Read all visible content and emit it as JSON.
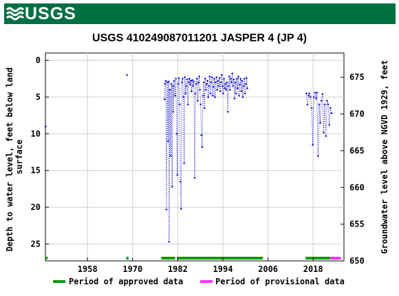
{
  "header": {
    "agency_logo_text": "USGS"
  },
  "chart_data": {
    "type": "scatter",
    "title": "USGS 410249087011201 JASPER 4 (JP 4)",
    "ylabel_left": "Depth to water level, feet below land surface",
    "ylabel_left_lines": [
      "Depth to water level, feet below land",
      "surface"
    ],
    "ylabel_right": "Groundwater level above NGVD 1929, feet",
    "xlim": [
      1946.8,
      2026.2
    ],
    "ylim": [
      -1.0,
      27.3
    ],
    "x_ticks": [
      1958,
      1970,
      1982,
      1994,
      2006,
      2018
    ],
    "x_tick_labels": [
      "1958",
      "1970",
      "1982",
      "1994",
      "2006",
      "2018"
    ],
    "y_ticks": [
      0,
      5,
      10,
      15,
      20,
      25
    ],
    "y_tick_labels": [
      "0",
      "5",
      "10",
      "15",
      "20",
      "25"
    ],
    "y2_ticks": [
      675,
      670,
      665,
      660,
      655,
      650
    ],
    "y2_tick_labels": [
      "675",
      "670",
      "665",
      "660",
      "655",
      "650"
    ],
    "land_surface_offset": 677.3,
    "grid": true,
    "legend_position": "bottom",
    "legend": [
      {
        "label": "Period of approved data",
        "color": "#009900"
      },
      {
        "label": "Period of provisional data",
        "color": "#ff33ff"
      }
    ],
    "point_color": "#0000cc",
    "series": [
      {
        "name": "",
        "style": "dotted-points",
        "points": [
          [
            1946.9,
            9.0
          ],
          [
            1968.5,
            2.0
          ],
          [
            1978.5,
            5.3
          ],
          [
            1978.6,
            3.2
          ],
          [
            1978.8,
            2.8
          ],
          [
            1979.0,
            20.3
          ],
          [
            1979.2,
            3.0
          ],
          [
            1979.4,
            11.0
          ],
          [
            1979.6,
            2.9
          ],
          [
            1979.7,
            24.7
          ],
          [
            1979.9,
            4.0
          ],
          [
            1980.1,
            13.0
          ],
          [
            1980.3,
            3.2
          ],
          [
            1980.5,
            17.2
          ],
          [
            1980.7,
            3.5
          ],
          [
            1980.8,
            7.0
          ],
          [
            1981.0,
            2.8
          ],
          [
            1981.3,
            4.8
          ],
          [
            1981.5,
            2.5
          ],
          [
            1981.7,
            10.0
          ],
          [
            1981.9,
            15.6
          ],
          [
            1982.1,
            3.2
          ],
          [
            1982.3,
            2.4
          ],
          [
            1982.5,
            6.0
          ],
          [
            1982.7,
            16.5
          ],
          [
            1982.9,
            20.2
          ],
          [
            1983.1,
            3.0
          ],
          [
            1983.3,
            2.5
          ],
          [
            1983.5,
            5.0
          ],
          [
            1983.7,
            14.0
          ],
          [
            1983.9,
            2.3
          ],
          [
            1984.1,
            4.5
          ],
          [
            1984.3,
            3.5
          ],
          [
            1984.5,
            2.6
          ],
          [
            1984.7,
            6.0
          ],
          [
            1984.9,
            3.0
          ],
          [
            1985.1,
            2.5
          ],
          [
            1985.3,
            3.3
          ],
          [
            1985.5,
            2.8
          ],
          [
            1985.7,
            4.2
          ],
          [
            1985.9,
            2.7
          ],
          [
            1986.1,
            3.5
          ],
          [
            1986.3,
            2.9
          ],
          [
            1986.5,
            16.0
          ],
          [
            1986.7,
            4.5
          ],
          [
            1986.9,
            3.2
          ],
          [
            1987.1,
            2.5
          ],
          [
            1987.3,
            5.5
          ],
          [
            1987.5,
            3.0
          ],
          [
            1987.7,
            2.2
          ],
          [
            1987.9,
            4.0
          ],
          [
            1988.1,
            6.0
          ],
          [
            1988.3,
            10.2
          ],
          [
            1988.5,
            11.8
          ],
          [
            1988.7,
            4.8
          ],
          [
            1988.9,
            3.0
          ],
          [
            1989.1,
            6.5
          ],
          [
            1989.3,
            2.5
          ],
          [
            1989.5,
            4.0
          ],
          [
            1989.7,
            3.2
          ],
          [
            1989.9,
            2.8
          ],
          [
            1990.1,
            5.0
          ],
          [
            1990.3,
            3.5
          ],
          [
            1990.5,
            2.2
          ],
          [
            1990.7,
            4.5
          ],
          [
            1990.9,
            3.0
          ],
          [
            1991.1,
            2.3
          ],
          [
            1991.3,
            4.8
          ],
          [
            1991.5,
            3.6
          ],
          [
            1991.7,
            2.5
          ],
          [
            1991.9,
            5.0
          ],
          [
            1992.1,
            3.0
          ],
          [
            1992.3,
            2.3
          ],
          [
            1992.5,
            4.0
          ],
          [
            1992.7,
            2.8
          ],
          [
            1992.9,
            3.5
          ],
          [
            1993.1,
            2.4
          ],
          [
            1993.3,
            4.2
          ],
          [
            1993.5,
            3.0
          ],
          [
            1993.7,
            2.0
          ],
          [
            1993.9,
            3.5
          ],
          [
            1994.1,
            4.5
          ],
          [
            1994.3,
            2.5
          ],
          [
            1994.5,
            3.8
          ],
          [
            1994.7,
            3.2
          ],
          [
            1994.9,
            4.0
          ],
          [
            1995.1,
            3.0
          ],
          [
            1995.3,
            7.0
          ],
          [
            1995.5,
            3.5
          ],
          [
            1995.7,
            2.2
          ],
          [
            1995.9,
            4.0
          ],
          [
            1996.1,
            2.5
          ],
          [
            1996.3,
            3.0
          ],
          [
            1996.5,
            1.8
          ],
          [
            1996.7,
            3.5
          ],
          [
            1996.9,
            2.6
          ],
          [
            1997.1,
            5.2
          ],
          [
            1997.3,
            3.0
          ],
          [
            1997.5,
            4.5
          ],
          [
            1997.7,
            2.5
          ],
          [
            1997.9,
            3.8
          ],
          [
            1998.1,
            2.2
          ],
          [
            1998.3,
            4.8
          ],
          [
            1998.5,
            3.3
          ],
          [
            1998.7,
            2.5
          ],
          [
            1998.9,
            4.2
          ],
          [
            1999.1,
            2.8
          ],
          [
            1999.3,
            5.0
          ],
          [
            1999.5,
            3.5
          ],
          [
            1999.7,
            2.5
          ],
          [
            1999.9,
            4.5
          ],
          [
            2000.1,
            3.2
          ],
          [
            2000.3,
            2.4
          ],
          [
            2000.5,
            3.8
          ],
          [
            2016.2,
            4.5
          ],
          [
            2016.5,
            6.0
          ],
          [
            2016.8,
            4.8
          ],
          [
            2017.0,
            4.5
          ],
          [
            2017.3,
            5.0
          ],
          [
            2017.6,
            6.5
          ],
          [
            2017.9,
            11.5
          ],
          [
            2018.2,
            5.0
          ],
          [
            2018.5,
            4.4
          ],
          [
            2018.8,
            5.2
          ],
          [
            2019.0,
            4.4
          ],
          [
            2019.3,
            13.0
          ],
          [
            2019.6,
            6.0
          ],
          [
            2019.9,
            8.5
          ],
          [
            2020.2,
            5.5
          ],
          [
            2020.5,
            4.6
          ],
          [
            2020.8,
            9.8
          ],
          [
            2021.1,
            6.0
          ],
          [
            2021.4,
            10.3
          ],
          [
            2021.7,
            5.5
          ],
          [
            2022.0,
            6.0
          ],
          [
            2022.3,
            8.8
          ],
          [
            2022.6,
            6.5
          ],
          [
            2022.9,
            7.2
          ]
        ]
      }
    ],
    "approved_periods": [
      [
        1946.8,
        1947.4
      ],
      [
        1968.3,
        1968.9
      ],
      [
        1977.6,
        1981.3
      ],
      [
        1981.8,
        2004.6
      ],
      [
        2016.0,
        2022.5
      ]
    ],
    "provisional_periods": [
      [
        2022.5,
        2025.4
      ]
    ]
  }
}
